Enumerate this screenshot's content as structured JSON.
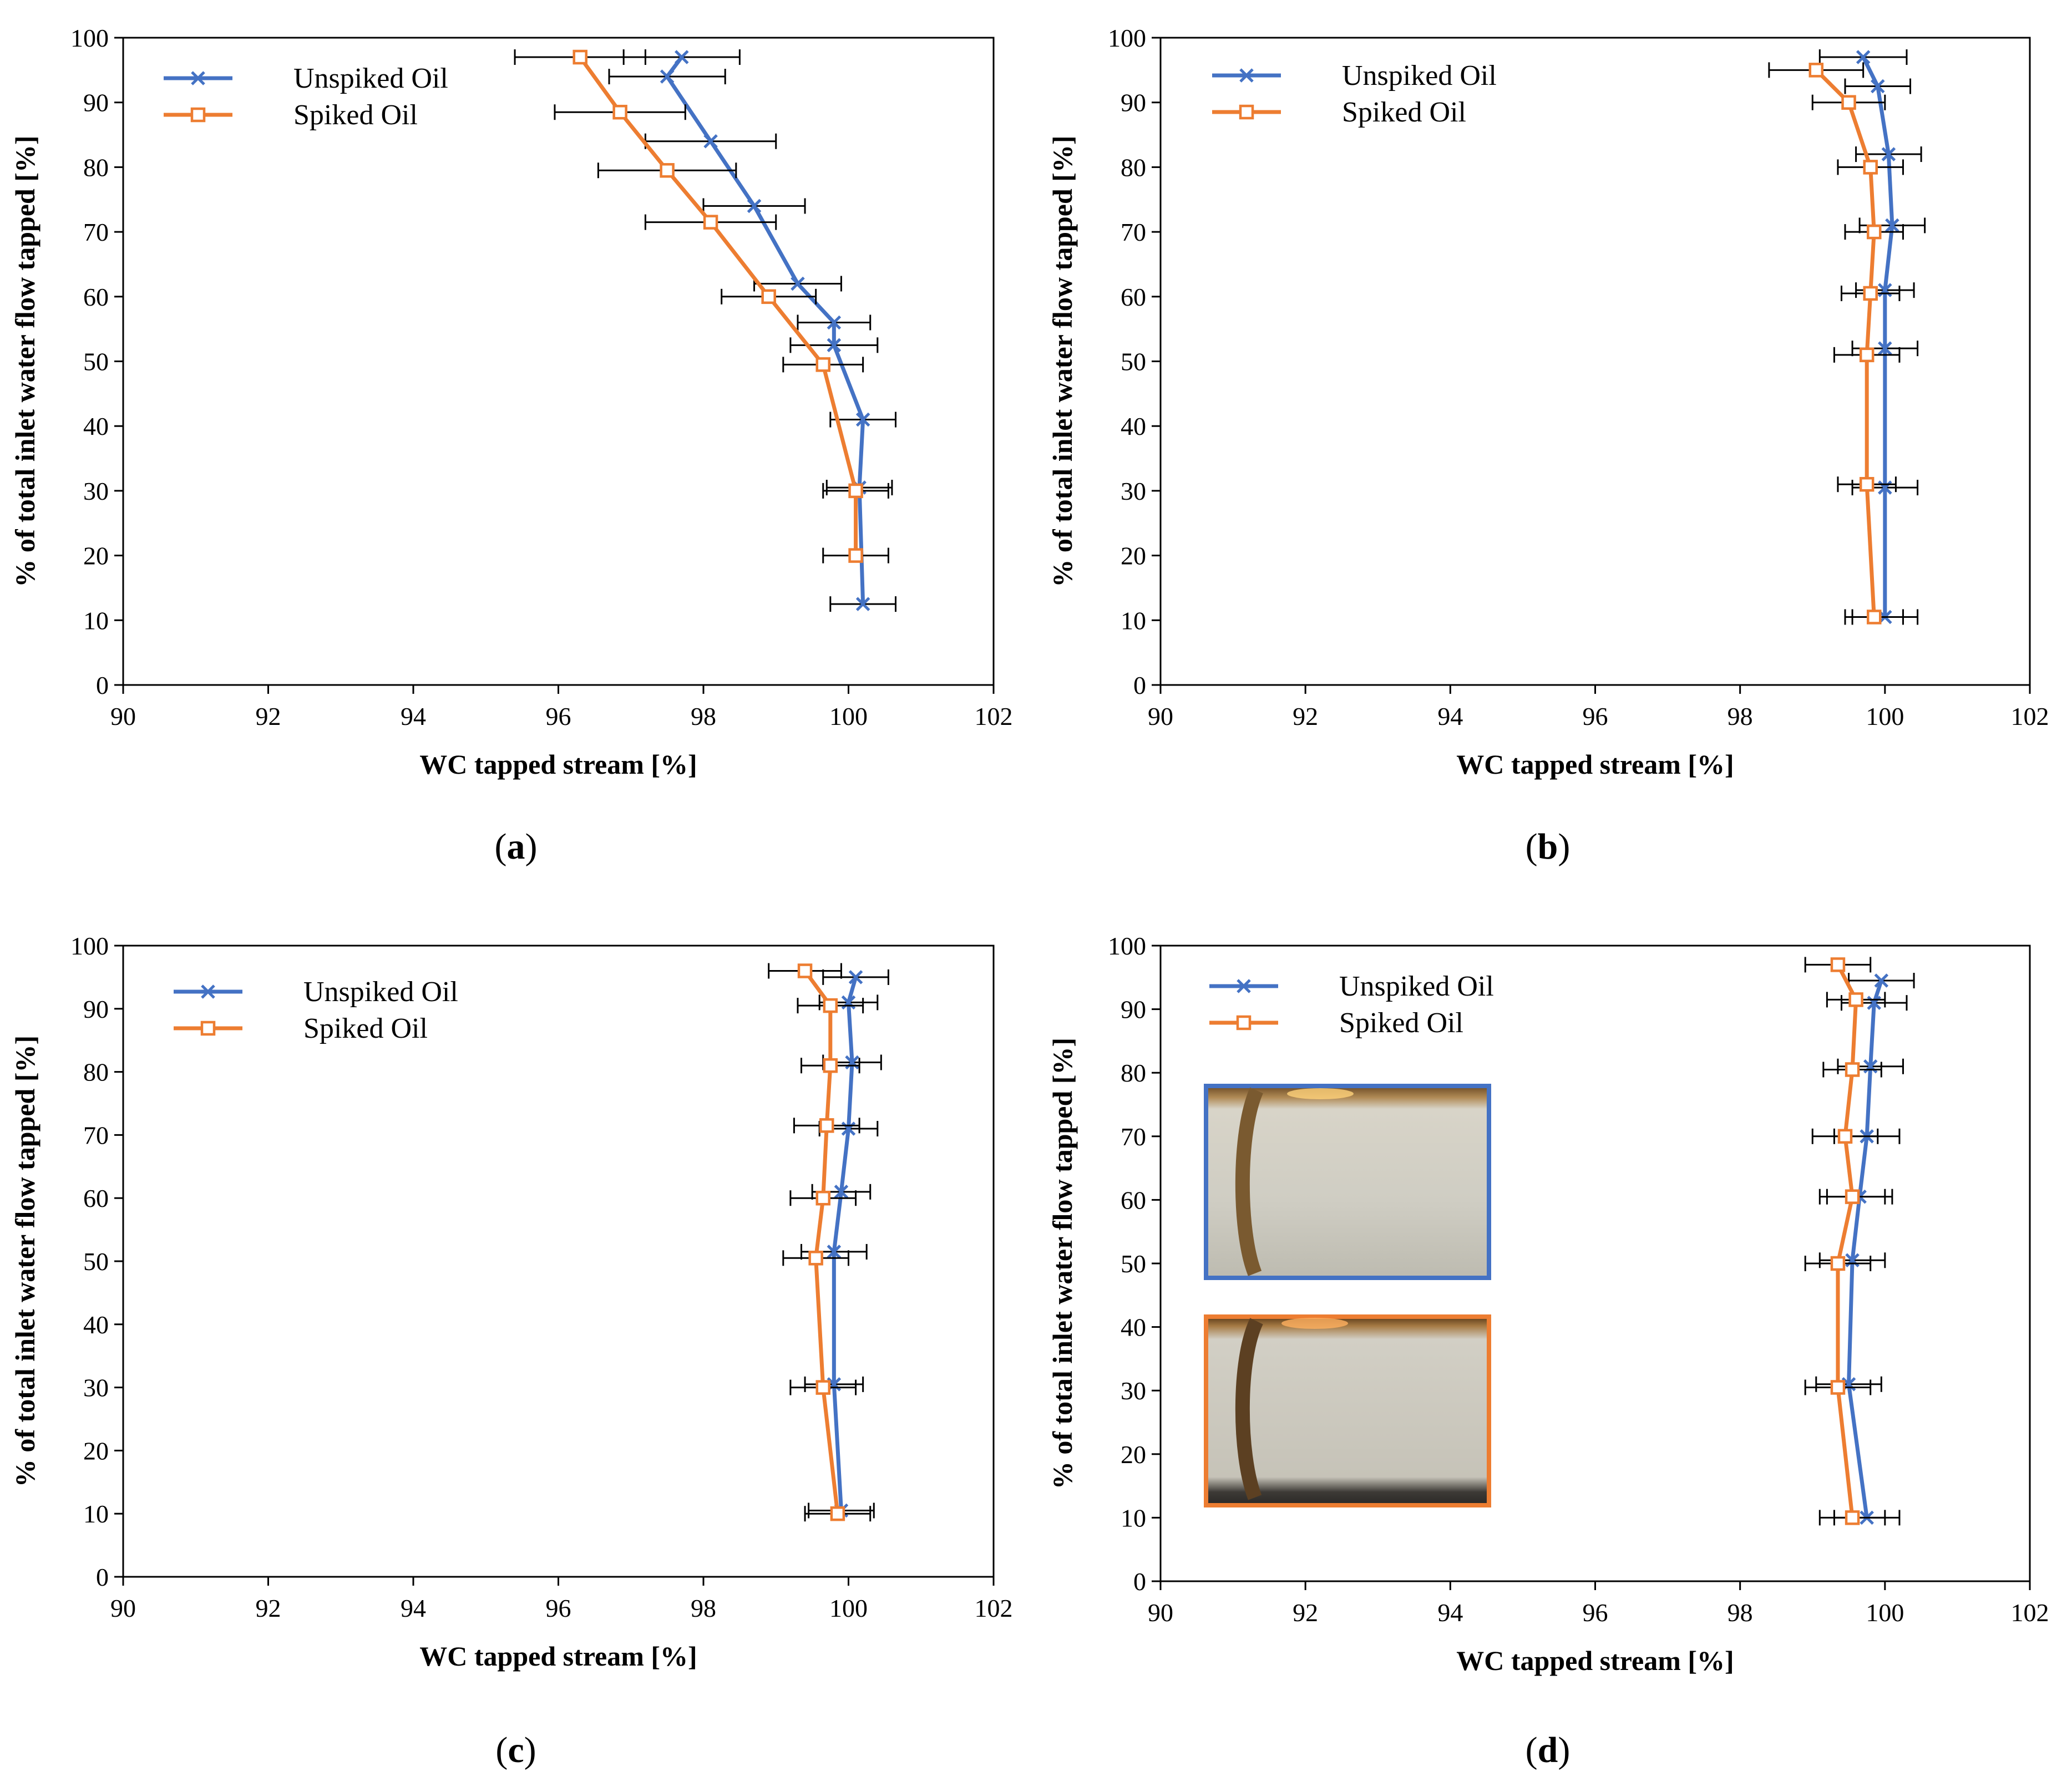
{
  "colors": {
    "unspiked": "#4472C4",
    "spiked": "#ED7D31",
    "axis": "#000000",
    "errorbar": "#000000"
  },
  "chart_data": [
    {
      "type": "line",
      "panel_label": "(a)",
      "panel_letter": "a",
      "xlabel": "WC tapped stream [%]",
      "ylabel": "% of total inlet water flow tapped [%]",
      "xlim": [
        90,
        102
      ],
      "ylim": [
        0,
        100
      ],
      "xticks": [
        90,
        92,
        94,
        96,
        98,
        100,
        102
      ],
      "yticks": [
        0,
        10,
        20,
        30,
        40,
        50,
        60,
        70,
        80,
        90,
        100
      ],
      "legend_position": "top-left",
      "series": [
        {
          "name": "Unspiked Oil",
          "marker": "x",
          "points": [
            {
              "x": 97.7,
              "y": 97,
              "err": 0.8
            },
            {
              "x": 97.5,
              "y": 94,
              "err": 0.8
            },
            {
              "x": 98.1,
              "y": 84,
              "err": 0.9
            },
            {
              "x": 98.7,
              "y": 74,
              "err": 0.7
            },
            {
              "x": 99.3,
              "y": 62,
              "err": 0.6
            },
            {
              "x": 99.8,
              "y": 56,
              "err": 0.5
            },
            {
              "x": 99.8,
              "y": 52.5,
              "err": 0.6
            },
            {
              "x": 100.2,
              "y": 41,
              "err": 0.45
            },
            {
              "x": 100.15,
              "y": 30.5,
              "err": 0.45
            },
            {
              "x": 100.2,
              "y": 12.5,
              "err": 0.45
            }
          ]
        },
        {
          "name": "Spiked Oil",
          "marker": "square",
          "points": [
            {
              "x": 96.3,
              "y": 97,
              "err": 0.9
            },
            {
              "x": 96.85,
              "y": 88.5,
              "err": 0.9
            },
            {
              "x": 97.5,
              "y": 79.5,
              "err": 0.95
            },
            {
              "x": 98.1,
              "y": 71.5,
              "err": 0.9
            },
            {
              "x": 98.9,
              "y": 60,
              "err": 0.65
            },
            {
              "x": 99.65,
              "y": 49.5,
              "err": 0.55
            },
            {
              "x": 100.1,
              "y": 30,
              "err": 0.45
            },
            {
              "x": 100.1,
              "y": 20,
              "err": 0.45
            }
          ]
        }
      ]
    },
    {
      "type": "line",
      "panel_label": "(b)",
      "panel_letter": "b",
      "xlabel": "WC tapped stream [%]",
      "ylabel": "% of total inlet water flow tapped [%]",
      "xlim": [
        90,
        102
      ],
      "ylim": [
        0,
        100
      ],
      "xticks": [
        90,
        92,
        94,
        96,
        98,
        100,
        102
      ],
      "yticks": [
        0,
        10,
        20,
        30,
        40,
        50,
        60,
        70,
        80,
        90,
        100
      ],
      "legend_position": "top-left",
      "series": [
        {
          "name": "Unspiked Oil",
          "marker": "x",
          "points": [
            {
              "x": 99.7,
              "y": 97,
              "err": 0.6
            },
            {
              "x": 99.9,
              "y": 92.5,
              "err": 0.45
            },
            {
              "x": 100.05,
              "y": 82,
              "err": 0.45
            },
            {
              "x": 100.1,
              "y": 71,
              "err": 0.45
            },
            {
              "x": 100.0,
              "y": 61,
              "err": 0.4
            },
            {
              "x": 100.0,
              "y": 52,
              "err": 0.45
            },
            {
              "x": 100.0,
              "y": 30.5,
              "err": 0.45
            },
            {
              "x": 100.0,
              "y": 10.5,
              "err": 0.45
            }
          ]
        },
        {
          "name": "Spiked Oil",
          "marker": "square",
          "points": [
            {
              "x": 99.05,
              "y": 95,
              "err": 0.65
            },
            {
              "x": 99.5,
              "y": 90,
              "err": 0.5
            },
            {
              "x": 99.8,
              "y": 80,
              "err": 0.45
            },
            {
              "x": 99.85,
              "y": 70,
              "err": 0.4
            },
            {
              "x": 99.8,
              "y": 60.5,
              "err": 0.4
            },
            {
              "x": 99.75,
              "y": 51,
              "err": 0.45
            },
            {
              "x": 99.75,
              "y": 31,
              "err": 0.4
            },
            {
              "x": 99.85,
              "y": 10.5,
              "err": 0.4
            }
          ]
        }
      ]
    },
    {
      "type": "line",
      "panel_label": "(c)",
      "panel_letter": "c",
      "xlabel": "WC tapped stream [%]",
      "ylabel": "% of total inlet water flow tapped [%]",
      "xlim": [
        90,
        102
      ],
      "ylim": [
        0,
        100
      ],
      "xticks": [
        90,
        92,
        94,
        96,
        98,
        100,
        102
      ],
      "yticks": [
        0,
        10,
        20,
        30,
        40,
        50,
        60,
        70,
        80,
        90,
        100
      ],
      "legend_position": "top-left",
      "series": [
        {
          "name": "Unspiked Oil",
          "marker": "x",
          "points": [
            {
              "x": 100.1,
              "y": 95,
              "err": 0.45
            },
            {
              "x": 100.0,
              "y": 91,
              "err": 0.4
            },
            {
              "x": 100.05,
              "y": 81.5,
              "err": 0.4
            },
            {
              "x": 100.0,
              "y": 71,
              "err": 0.4
            },
            {
              "x": 99.9,
              "y": 61,
              "err": 0.4
            },
            {
              "x": 99.8,
              "y": 51.5,
              "err": 0.45
            },
            {
              "x": 99.8,
              "y": 30.5,
              "err": 0.4
            },
            {
              "x": 99.9,
              "y": 10.5,
              "err": 0.45
            }
          ]
        },
        {
          "name": "Spiked Oil",
          "marker": "square",
          "points": [
            {
              "x": 99.4,
              "y": 96,
              "err": 0.5
            },
            {
              "x": 99.75,
              "y": 90.5,
              "err": 0.45
            },
            {
              "x": 99.75,
              "y": 81,
              "err": 0.4
            },
            {
              "x": 99.7,
              "y": 71.5,
              "err": 0.45
            },
            {
              "x": 99.65,
              "y": 60,
              "err": 0.45
            },
            {
              "x": 99.55,
              "y": 50.5,
              "err": 0.45
            },
            {
              "x": 99.65,
              "y": 30,
              "err": 0.45
            },
            {
              "x": 99.85,
              "y": 10,
              "err": 0.45
            }
          ]
        }
      ]
    },
    {
      "type": "line",
      "panel_label": "(d)",
      "panel_letter": "d",
      "xlabel": "WC tapped stream [%]",
      "ylabel": "% of total inlet water flow tapped [%]",
      "xlim": [
        90,
        102
      ],
      "ylim": [
        0,
        100
      ],
      "xticks": [
        90,
        92,
        94,
        96,
        98,
        100,
        102
      ],
      "yticks": [
        0,
        10,
        20,
        30,
        40,
        50,
        60,
        70,
        80,
        90,
        100
      ],
      "legend_position": "top-left",
      "has_inset_photos": true,
      "series": [
        {
          "name": "Unspiked Oil",
          "marker": "x",
          "points": [
            {
              "x": 99.95,
              "y": 94.5,
              "err": 0.45
            },
            {
              "x": 99.85,
              "y": 91,
              "err": 0.45
            },
            {
              "x": 99.8,
              "y": 81,
              "err": 0.45
            },
            {
              "x": 99.75,
              "y": 70,
              "err": 0.45
            },
            {
              "x": 99.65,
              "y": 60.5,
              "err": 0.45
            },
            {
              "x": 99.55,
              "y": 50.5,
              "err": 0.45
            },
            {
              "x": 99.5,
              "y": 31,
              "err": 0.45
            },
            {
              "x": 99.75,
              "y": 10,
              "err": 0.45
            }
          ]
        },
        {
          "name": "Spiked Oil",
          "marker": "square",
          "points": [
            {
              "x": 99.35,
              "y": 97,
              "err": 0.45
            },
            {
              "x": 99.6,
              "y": 91.5,
              "err": 0.4
            },
            {
              "x": 99.55,
              "y": 80.5,
              "err": 0.4
            },
            {
              "x": 99.45,
              "y": 70,
              "err": 0.45
            },
            {
              "x": 99.55,
              "y": 60.5,
              "err": 0.45
            },
            {
              "x": 99.35,
              "y": 50,
              "err": 0.45
            },
            {
              "x": 99.35,
              "y": 30.5,
              "err": 0.45
            },
            {
              "x": 99.55,
              "y": 10,
              "err": 0.45
            }
          ]
        }
      ]
    }
  ]
}
